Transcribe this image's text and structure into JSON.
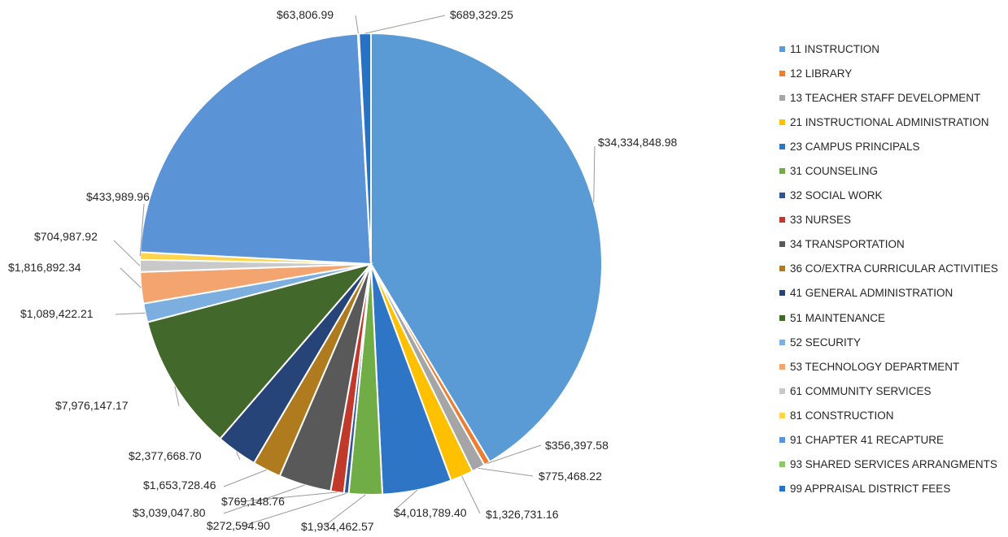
{
  "chart_data": {
    "type": "pie",
    "title": "",
    "legend_position": "right",
    "series": [
      {
        "name": "11 INSTRUCTION",
        "value": 34334848.98,
        "label": "$34,334,848.98",
        "color": "#5B9BD5"
      },
      {
        "name": "12 LIBRARY",
        "value": 356397.58,
        "label": "$356,397.58",
        "color": "#ED7D31"
      },
      {
        "name": "13 TEACHER STAFF DEVELOPMENT",
        "value": 775468.22,
        "label": "$775,468.22",
        "color": "#A5A5A5"
      },
      {
        "name": "21 INSTRUCTIONAL ADMINISTRATION",
        "value": 1326731.16,
        "label": "$1,326,731.16",
        "color": "#FFC000"
      },
      {
        "name": "23 CAMPUS PRINCIPALS",
        "value": 4018789.4,
        "label": "$4,018,789.40",
        "color": "#2E75C6"
      },
      {
        "name": "31 COUNSELING",
        "value": 1934462.57,
        "label": "$1,934,462.57",
        "color": "#70AD47"
      },
      {
        "name": "32 SOCIAL WORK",
        "value": 272594.9,
        "label": "$272,594.90",
        "color": "#2F5597"
      },
      {
        "name": "33 NURSES",
        "value": 769148.76,
        "label": "$769,148.76",
        "color": "#C0392B"
      },
      {
        "name": "34 TRANSPORTATION",
        "value": 3039047.8,
        "label": "$3,039,047.80",
        "color": "#595959"
      },
      {
        "name": "36 CO/EXTRA CURRICULAR ACTIVITIES",
        "value": 1653728.46,
        "label": "$1,653,728.46",
        "color": "#B07A1E"
      },
      {
        "name": "41 GENERAL ADMINISTRATION",
        "value": 2377668.7,
        "label": "$2,377,668.70",
        "color": "#264478"
      },
      {
        "name": "51 MAINTENANCE",
        "value": 7976147.17,
        "label": "$7,976,147.17",
        "color": "#43682B"
      },
      {
        "name": "52 SECURITY",
        "value": 1089422.21,
        "label": "$1,089,422.21",
        "color": "#7CAFE0"
      },
      {
        "name": "53 TECHNOLOGY DEPARTMENT",
        "value": 1816892.34,
        "label": "$1,816,892.34",
        "color": "#F4A46E"
      },
      {
        "name": "61 COMMUNITY SERVICES",
        "value": 704987.92,
        "label": "$704,987.92",
        "color": "#C9C9C9"
      },
      {
        "name": "81 CONSTRUCTION",
        "value": 433989.96,
        "label": "$433,989.96",
        "color": "#FFD44D"
      },
      {
        "name": "91 CHAPTER 41 RECAPTURE",
        "value": 19300000,
        "label": "",
        "color": "#5A93D6"
      },
      {
        "name": "93 SHARED SERVICES ARRANGMENTS",
        "value": 63806.99,
        "label": "$63,806.99",
        "color": "#8DC66B"
      },
      {
        "name": "99 APPRAISAL DISTRICT FEES",
        "value": 689329.25,
        "label": "$689,329.25",
        "color": "#2872C4"
      }
    ]
  }
}
